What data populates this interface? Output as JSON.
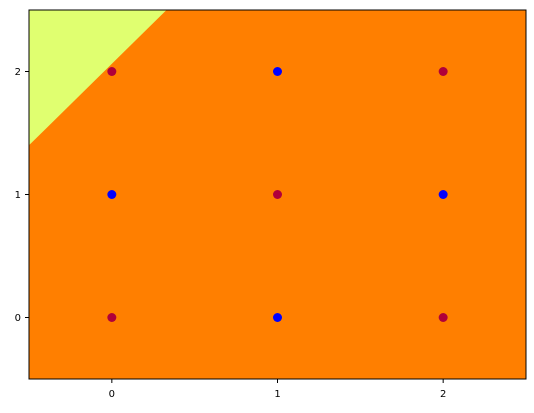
{
  "chart_data": {
    "type": "scatter",
    "title": "",
    "xlabel": "",
    "ylabel": "",
    "xlim": [
      -0.5,
      2.5
    ],
    "ylim": [
      -0.5,
      2.5
    ],
    "xticks": [
      0,
      1,
      2
    ],
    "yticks": [
      0,
      1,
      2
    ],
    "xtick_labels": [
      "0",
      "1",
      "2"
    ],
    "ytick_labels": [
      "0",
      "1",
      "2"
    ],
    "grid": false,
    "background_regions": [
      {
        "label": "",
        "color": "#ff7f00",
        "region": "main"
      },
      {
        "label": "",
        "color": "#e0ff70",
        "region": "upper-left",
        "boundary": [
          [
            -0.5,
            1.4
          ],
          [
            0.33,
            2.5
          ]
        ]
      }
    ],
    "series": [
      {
        "color": "#b0003a",
        "points": [
          [
            0,
            0
          ],
          [
            2,
            0
          ],
          [
            1,
            1
          ],
          [
            0,
            2
          ],
          [
            2,
            2
          ]
        ]
      },
      {
        "color": "#0000ff",
        "points": [
          [
            1,
            0
          ],
          [
            0,
            1
          ],
          [
            2,
            1
          ],
          [
            1,
            2
          ]
        ]
      }
    ]
  }
}
